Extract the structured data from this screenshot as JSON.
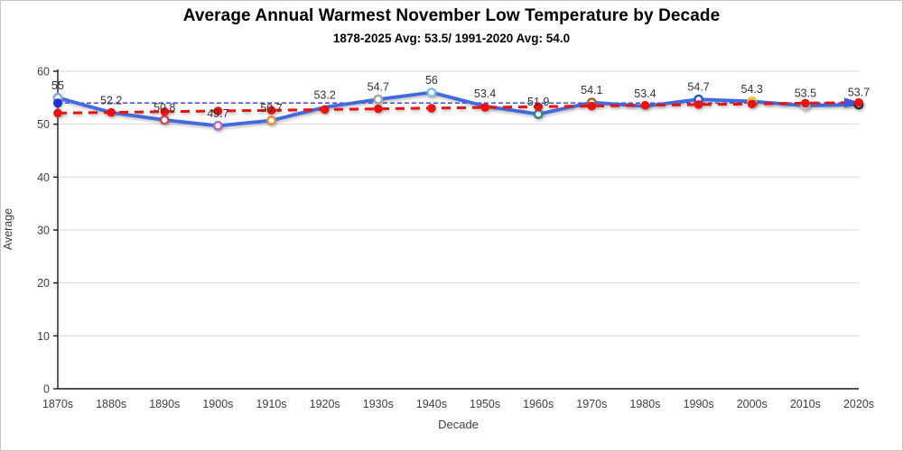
{
  "chart": {
    "title": "Average Annual Warmest November Low Temperature by Decade",
    "subtitle": "1878-2025 Avg: 53.5/ 1991-2020 Avg: 54.0",
    "xlabel": "Decade",
    "ylabel": "Average"
  },
  "chart_data": {
    "type": "line",
    "title": "Average Annual Warmest November Low Temperature by Decade",
    "subtitle": "1878-2025 Avg: 53.5/ 1991-2020 Avg: 54.0",
    "xlabel": "Decade",
    "ylabel": "Average",
    "ylim": [
      0,
      60
    ],
    "yticks": [
      0,
      10,
      20,
      30,
      40,
      50,
      60
    ],
    "grid": "horizontal",
    "legend": "none",
    "categories": [
      "1870s",
      "1880s",
      "1890s",
      "1900s",
      "1910s",
      "1920s",
      "1930s",
      "1940s",
      "1950s",
      "1960s",
      "1970s",
      "1980s",
      "1990s",
      "2000s",
      "2010s",
      "2020s"
    ],
    "series": [
      {
        "name": "decade_values",
        "style": "solid-thick-arrow-end",
        "color": "#4169e1",
        "values": [
          55,
          52.2,
          50.8,
          49.7,
          50.7,
          53.2,
          54.7,
          56,
          53.4,
          51.9,
          54.1,
          53.4,
          54.7,
          54.3,
          53.5,
          53.7
        ],
        "data_labels": [
          "55",
          "52.2",
          "50.8",
          "49.7",
          "50.7",
          "53.2",
          "54.7",
          "56",
          "53.4",
          "51.9",
          "54.1",
          "53.4",
          "54.7",
          "54.3",
          "53.5",
          "53.7"
        ],
        "marker_colors": [
          "#85a8db",
          null,
          "#c84c5c",
          "#b666c6",
          "#e59038",
          null,
          "#a6a6a6",
          "#7ebfe0",
          null,
          "#2e8584",
          "#a85e32",
          null,
          "#2b50d8",
          "#e3c32a",
          "#c9c9c9",
          "#1a1a1a"
        ]
      },
      {
        "name": "trend_line",
        "style": "dashed-thick-dots",
        "color": "#ee1111",
        "values": [
          52.1,
          52.23,
          52.37,
          52.5,
          52.63,
          52.77,
          52.9,
          53.03,
          53.17,
          53.3,
          53.43,
          53.57,
          53.7,
          53.83,
          53.97,
          54.1
        ]
      },
      {
        "name": "avg_1991_2020_line",
        "style": "dashed-thin-horizontal",
        "color": "#2b3fd6",
        "marker_color": "#1f2fd0",
        "value": 54.0
      }
    ]
  },
  "colors": {
    "gridline": "#d9d9d9",
    "axis": "#1a1a1a",
    "tick_text": "#404040",
    "arrow": "#3c55e0"
  }
}
